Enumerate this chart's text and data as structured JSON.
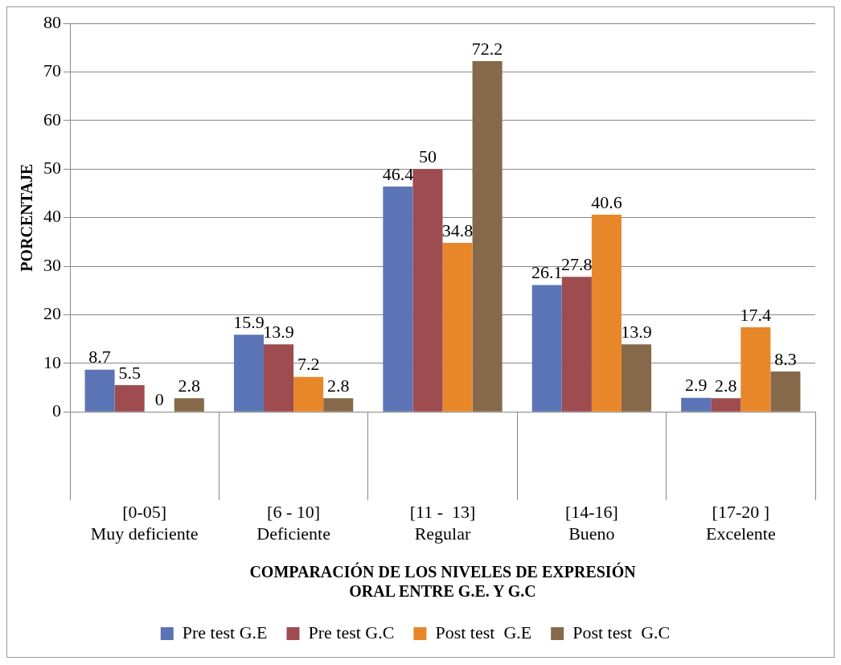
{
  "chart_data": {
    "type": "bar",
    "xlabel": "COMPARACIÓN DE LOS NIVELES DE EXPRESIÓN\nORAL ENTRE G.E. Y G.C",
    "ylabel": "PORCENTAJE",
    "categories": [
      "[0-05]\nMuy deficiente",
      "[6 - 10]\nDeficiente",
      "[11 -  13]\nRegular",
      "[14-16]\nBueno",
      "[17-20 ]\nExcelente"
    ],
    "series": [
      {
        "name": "Pre test G.E",
        "color": "#5b74b5",
        "values": [
          8.7,
          15.9,
          46.4,
          26.1,
          2.9
        ]
      },
      {
        "name": "Pre test G.C",
        "color": "#9e4c4f",
        "values": [
          5.5,
          13.9,
          50,
          27.8,
          2.8
        ]
      },
      {
        "name": "Post test  G.E",
        "color": "#e8872a",
        "values": [
          0,
          7.2,
          34.8,
          40.6,
          17.4
        ]
      },
      {
        "name": "Post test  G.C",
        "color": "#86694a",
        "values": [
          2.8,
          2.8,
          72.2,
          13.9,
          8.3
        ]
      }
    ],
    "ylim": [
      0,
      80
    ],
    "yticks": [
      0,
      10,
      20,
      30,
      40,
      50,
      60,
      70,
      80
    ],
    "grid": "y",
    "legend": "bottom",
    "data_labels": true
  }
}
